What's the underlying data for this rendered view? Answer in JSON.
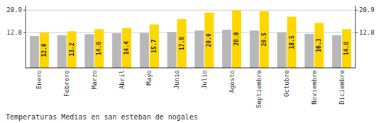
{
  "chart_data": {
    "type": "bar",
    "title": "Temperaturas Medias en san esteban de nogales",
    "categories": [
      "Enero",
      "Febrero",
      "Marzo",
      "Abril",
      "Mayo",
      "Junio",
      "Julio",
      "Agosto",
      "Septiembre",
      "Octubre",
      "Noviembre",
      "Diciembre"
    ],
    "series": [
      {
        "color": "#B8B8B8",
        "values": [
          11.5,
          11.8,
          12.2,
          12.5,
          12.6,
          13.0,
          13.5,
          13.8,
          13.5,
          12.8,
          12.3,
          11.8
        ]
      },
      {
        "color": "#FFD700",
        "values": [
          12.8,
          13.2,
          14.0,
          14.4,
          15.7,
          17.6,
          20.0,
          20.9,
          20.5,
          18.5,
          16.3,
          14.0
        ],
        "data_labels": true,
        "value_labels": [
          "12.8",
          "13.2",
          "14.0",
          "14.4",
          "15.7",
          "17.6",
          "20.0",
          "20.9",
          "20.5",
          "18.5",
          "16.3",
          "14.0"
        ]
      }
    ],
    "ylim": [
      0,
      22.5
    ],
    "yticks": [
      12.8,
      20.9
    ],
    "y2lim": [
      0,
      22.5
    ],
    "y2ticks": [
      12.8,
      20.9
    ],
    "grid": true
  }
}
